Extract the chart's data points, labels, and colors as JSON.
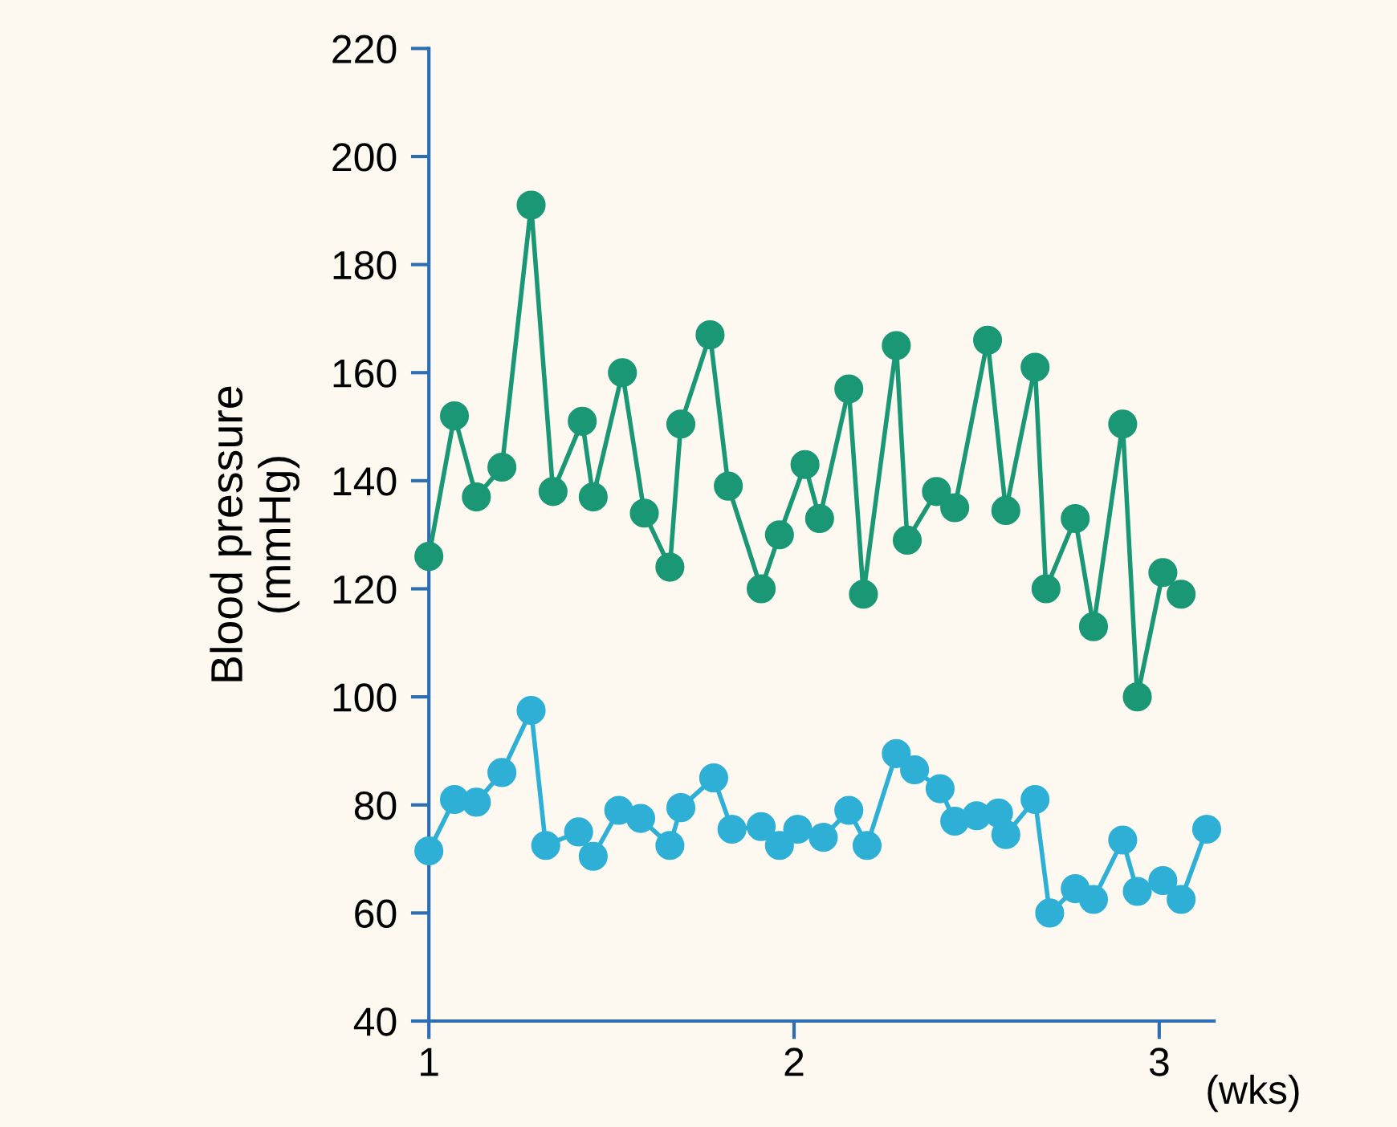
{
  "chart_data": {
    "type": "line",
    "xlabel": "(wks)",
    "ylabel": "Blood pressure\n(mmHg)",
    "xlim": [
      1,
      3.15
    ],
    "xticks": [
      1,
      2,
      3
    ],
    "ylim": [
      40,
      220
    ],
    "yticks": [
      40,
      60,
      80,
      100,
      120,
      140,
      160,
      180,
      200,
      220
    ],
    "grid": false,
    "legend": false,
    "marker": "circle",
    "line_style": "solid",
    "series": [
      {
        "color": "#1a9775",
        "x": [
          1.0,
          1.07,
          1.13,
          1.2,
          1.28,
          1.34,
          1.42,
          1.45,
          1.53,
          1.59,
          1.66,
          1.69,
          1.77,
          1.82,
          1.91,
          1.96,
          2.03,
          2.07,
          2.15,
          2.19,
          2.28,
          2.31,
          2.39,
          2.44,
          2.53,
          2.58,
          2.66,
          2.69,
          2.77,
          2.82,
          2.9,
          2.94,
          3.01,
          3.06
        ],
        "values": [
          126,
          152,
          137,
          142.5,
          191,
          138,
          151,
          137,
          160,
          134,
          124,
          150.5,
          167,
          139,
          120,
          130,
          143,
          133,
          157,
          119,
          165,
          129,
          138,
          135,
          166,
          134.5,
          161,
          120,
          133,
          113,
          150.5,
          100,
          123,
          119
        ]
      },
      {
        "color": "#2eb0d6",
        "x": [
          1.0,
          1.07,
          1.13,
          1.2,
          1.28,
          1.32,
          1.41,
          1.45,
          1.52,
          1.58,
          1.66,
          1.69,
          1.78,
          1.83,
          1.91,
          1.96,
          2.01,
          2.08,
          2.15,
          2.2,
          2.28,
          2.33,
          2.4,
          2.44,
          2.5,
          2.56,
          2.58,
          2.66,
          2.7,
          2.77,
          2.82,
          2.9,
          2.94,
          3.01,
          3.06,
          3.13
        ],
        "values": [
          71.5,
          81,
          80.5,
          86,
          97.5,
          72.5,
          75,
          70.5,
          79,
          77.5,
          72.5,
          79.5,
          85,
          75.5,
          76,
          72.5,
          75.5,
          74,
          79,
          72.5,
          89.5,
          86.5,
          83,
          77,
          78,
          78.5,
          74.5,
          81,
          60,
          64.5,
          62.5,
          73.5,
          64,
          66,
          62.5,
          75.5
        ]
      }
    ]
  }
}
